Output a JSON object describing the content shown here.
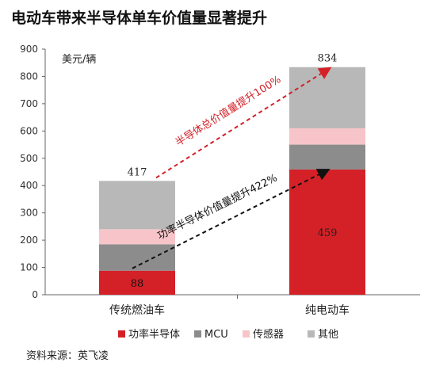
{
  "title": "电动车带来半导体单车价值量显著提升",
  "source": "资料来源：英飞凌",
  "chart_data": {
    "type": "bar",
    "stacked": true,
    "title": "电动车带来半导体单车价值量显著提升",
    "ylabel": "美元/辆",
    "ylim": [
      0,
      900
    ],
    "yticks": [
      0,
      100,
      200,
      300,
      400,
      500,
      600,
      700,
      800,
      900
    ],
    "categories": [
      "传统燃油车",
      "纯电动车"
    ],
    "series": [
      {
        "name": "功率半导体",
        "values": [
          88,
          459
        ],
        "color": "#d42027"
      },
      {
        "name": "MCU",
        "values": [
          97,
          91
        ],
        "color": "#8c8c8c"
      },
      {
        "name": "传感器",
        "values": [
          55,
          60
        ],
        "color": "#f7c5c9"
      },
      {
        "name": "其他",
        "values": [
          177,
          224
        ],
        "color": "#b8b8b8"
      }
    ],
    "totals": [
      417,
      834
    ],
    "segment_labels": [
      [
        "88",
        null,
        null,
        null
      ],
      [
        "459",
        null,
        null,
        null
      ]
    ],
    "annotations": [
      {
        "text": "半导体总价值量提升100%",
        "color": "#d42027",
        "from": [
          0,
          417
        ],
        "to": [
          1,
          834
        ]
      },
      {
        "text": "功率半导体价值量提升422%",
        "color": "#111111",
        "from": [
          0,
          88
        ],
        "to": [
          1,
          459
        ]
      }
    ],
    "legend_position": "bottom",
    "grid": false
  }
}
